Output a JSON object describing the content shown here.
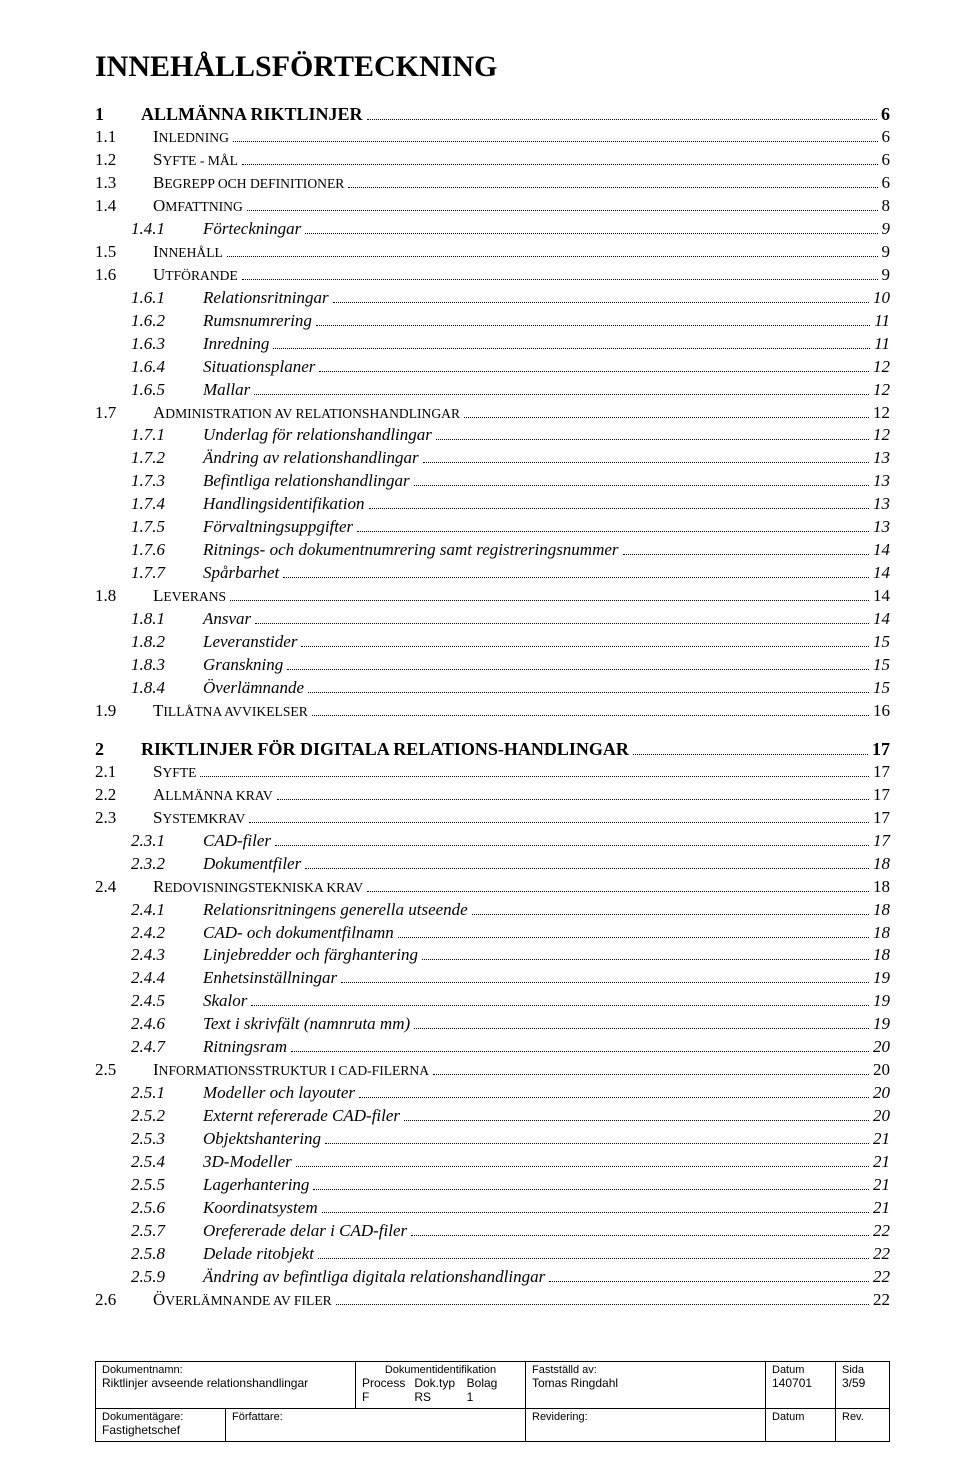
{
  "doc": {
    "title": "INNEHÅLLSFÖRTECKNING"
  },
  "toc": [
    {
      "level": 1,
      "num": "1",
      "title": "ALLMÄNNA RIKTLINJER",
      "page": "6"
    },
    {
      "level": 2,
      "num": "1.1",
      "title_sc": "I",
      "title_rest": "NLEDNING",
      "page": "6"
    },
    {
      "level": 2,
      "num": "1.2",
      "title_sc": "S",
      "title_rest": "YFTE - MÅL",
      "page": "6"
    },
    {
      "level": 2,
      "num": "1.3",
      "title_sc": "B",
      "title_rest": "EGREPP OCH DEFINITIONER",
      "page": "6"
    },
    {
      "level": 2,
      "num": "1.4",
      "title_sc": "O",
      "title_rest": "MFATTNING",
      "page": "8"
    },
    {
      "level": 3,
      "num": "1.4.1",
      "title": "Förteckningar",
      "page": "9"
    },
    {
      "level": 2,
      "num": "1.5",
      "title_sc": "I",
      "title_rest": "NNEHÅLL",
      "page": "9"
    },
    {
      "level": 2,
      "num": "1.6",
      "title_sc": "U",
      "title_rest": "TFÖRANDE",
      "page": "9"
    },
    {
      "level": 3,
      "num": "1.6.1",
      "title": "Relationsritningar",
      "page": "10"
    },
    {
      "level": 3,
      "num": "1.6.2",
      "title": "Rumsnumrering",
      "page": "11"
    },
    {
      "level": 3,
      "num": "1.6.3",
      "title": "Inredning",
      "page": "11"
    },
    {
      "level": 3,
      "num": "1.6.4",
      "title": "Situationsplaner",
      "page": "12"
    },
    {
      "level": 3,
      "num": "1.6.5",
      "title": "Mallar",
      "page": "12"
    },
    {
      "level": 2,
      "num": "1.7",
      "title_sc": "A",
      "title_rest": "DMINISTRATION AV RELATIONSHANDLINGAR",
      "page": "12"
    },
    {
      "level": 3,
      "num": "1.7.1",
      "title": "Underlag för relationshandlingar",
      "page": "12"
    },
    {
      "level": 3,
      "num": "1.7.2",
      "title": "Ändring av relationshandlingar",
      "page": "13"
    },
    {
      "level": 3,
      "num": "1.7.3",
      "title": "Befintliga relationshandlingar",
      "page": "13"
    },
    {
      "level": 3,
      "num": "1.7.4",
      "title": "Handlingsidentifikation",
      "page": "13"
    },
    {
      "level": 3,
      "num": "1.7.5",
      "title": "Förvaltningsuppgifter",
      "page": "13"
    },
    {
      "level": 3,
      "num": "1.7.6",
      "title": "Ritnings- och dokumentnumrering samt registreringsnummer",
      "page": "14"
    },
    {
      "level": 3,
      "num": "1.7.7",
      "title": "Spårbarhet",
      "page": "14"
    },
    {
      "level": 2,
      "num": "1.8",
      "title_sc": "L",
      "title_rest": "EVERANS",
      "page": "14"
    },
    {
      "level": 3,
      "num": "1.8.1",
      "title": "Ansvar",
      "page": "14"
    },
    {
      "level": 3,
      "num": "1.8.2",
      "title": "Leveranstider",
      "page": "15"
    },
    {
      "level": 3,
      "num": "1.8.3",
      "title": "Granskning",
      "page": "15"
    },
    {
      "level": 3,
      "num": "1.8.4",
      "title": "Överlämnande",
      "page": "15"
    },
    {
      "level": 2,
      "num": "1.9",
      "title_sc": "T",
      "title_rest": "ILLÅTNA AVVIKELSER",
      "page": "16"
    },
    {
      "level": 1,
      "num": "2",
      "title": "RIKTLINJER FÖR DIGITALA RELATIONS-HANDLINGAR",
      "page": "17"
    },
    {
      "level": 2,
      "num": "2.1",
      "title_sc": "S",
      "title_rest": "YFTE",
      "page": "17"
    },
    {
      "level": 2,
      "num": "2.2",
      "title_sc": "A",
      "title_rest": "LLMÄNNA KRAV",
      "page": "17"
    },
    {
      "level": 2,
      "num": "2.3",
      "title_sc": "S",
      "title_rest": "YSTEMKRAV",
      "page": "17"
    },
    {
      "level": 3,
      "num": "2.3.1",
      "title": "CAD-filer",
      "page": "17"
    },
    {
      "level": 3,
      "num": "2.3.2",
      "title": "Dokumentfiler",
      "page": "18"
    },
    {
      "level": 2,
      "num": "2.4",
      "title_sc": "R",
      "title_rest": "EDOVISNINGSTEKNISKA KRAV",
      "page": "18"
    },
    {
      "level": 3,
      "num": "2.4.1",
      "title": "Relationsritningens generella utseende",
      "page": "18"
    },
    {
      "level": 3,
      "num": "2.4.2",
      "title": "CAD- och dokumentfilnamn",
      "page": "18"
    },
    {
      "level": 3,
      "num": "2.4.3",
      "title": "Linjebredder och färghantering",
      "page": "18"
    },
    {
      "level": 3,
      "num": "2.4.4",
      "title": "Enhetsinställningar",
      "page": "19"
    },
    {
      "level": 3,
      "num": "2.4.5",
      "title": "Skalor",
      "page": "19"
    },
    {
      "level": 3,
      "num": "2.4.6",
      "title": "Text i skrivfält (namnruta mm)",
      "page": "19"
    },
    {
      "level": 3,
      "num": "2.4.7",
      "title": "Ritningsram",
      "page": "20"
    },
    {
      "level": 2,
      "num": "2.5",
      "title_sc": "I",
      "title_rest": "NFORMATIONSSTRUKTUR I CAD-FILERNA",
      "page": "20"
    },
    {
      "level": 3,
      "num": "2.5.1",
      "title": "Modeller och layouter",
      "page": "20"
    },
    {
      "level": 3,
      "num": "2.5.2",
      "title": "Externt refererade CAD-filer",
      "page": "20"
    },
    {
      "level": 3,
      "num": "2.5.3",
      "title": "Objektshantering",
      "page": "21"
    },
    {
      "level": 3,
      "num": "2.5.4",
      "title": "3D-Modeller",
      "page": "21"
    },
    {
      "level": 3,
      "num": "2.5.5",
      "title": "Lagerhantering",
      "page": "21"
    },
    {
      "level": 3,
      "num": "2.5.6",
      "title": "Koordinatsystem",
      "page": "21"
    },
    {
      "level": 3,
      "num": "2.5.7",
      "title": "Orefererade delar i CAD-filer",
      "page": "22"
    },
    {
      "level": 3,
      "num": "2.5.8",
      "title": "Delade ritobjekt",
      "page": "22"
    },
    {
      "level": 3,
      "num": "2.5.9",
      "title": "Ändring av befintliga digitala relationshandlingar",
      "page": "22"
    },
    {
      "level": 2,
      "num": "2.6",
      "title_sc": "Ö",
      "title_rest": "VERLÄMNANDE AV FILER",
      "page": "22"
    }
  ],
  "footer": {
    "row1": {
      "c1": {
        "label": "Dokumentnamn:",
        "value": "Riktlinjer avseende relationshandlingar"
      },
      "c2": {
        "label": "Dokumentidentifikation",
        "sub_labels": [
          "Process",
          "Dok.typ",
          "Bolag"
        ],
        "sub_values": [
          "F",
          "RS",
          "1"
        ]
      },
      "c3": {
        "label": "Fastställd av:",
        "value": "Tomas Ringdahl"
      },
      "c4": {
        "label": "Datum",
        "value": "140701"
      },
      "c5": {
        "label": "Sida",
        "value": "3/59"
      }
    },
    "row2": {
      "c1": {
        "label": "Dokumentägare:",
        "value": "Fastighetschef"
      },
      "c2": {
        "label": "Författare:",
        "value": ""
      },
      "c3": {
        "label": "Revidering:",
        "value": ""
      },
      "c4": {
        "label": "Datum",
        "value": ""
      },
      "c5": {
        "label": "Rev.",
        "value": ""
      }
    }
  }
}
